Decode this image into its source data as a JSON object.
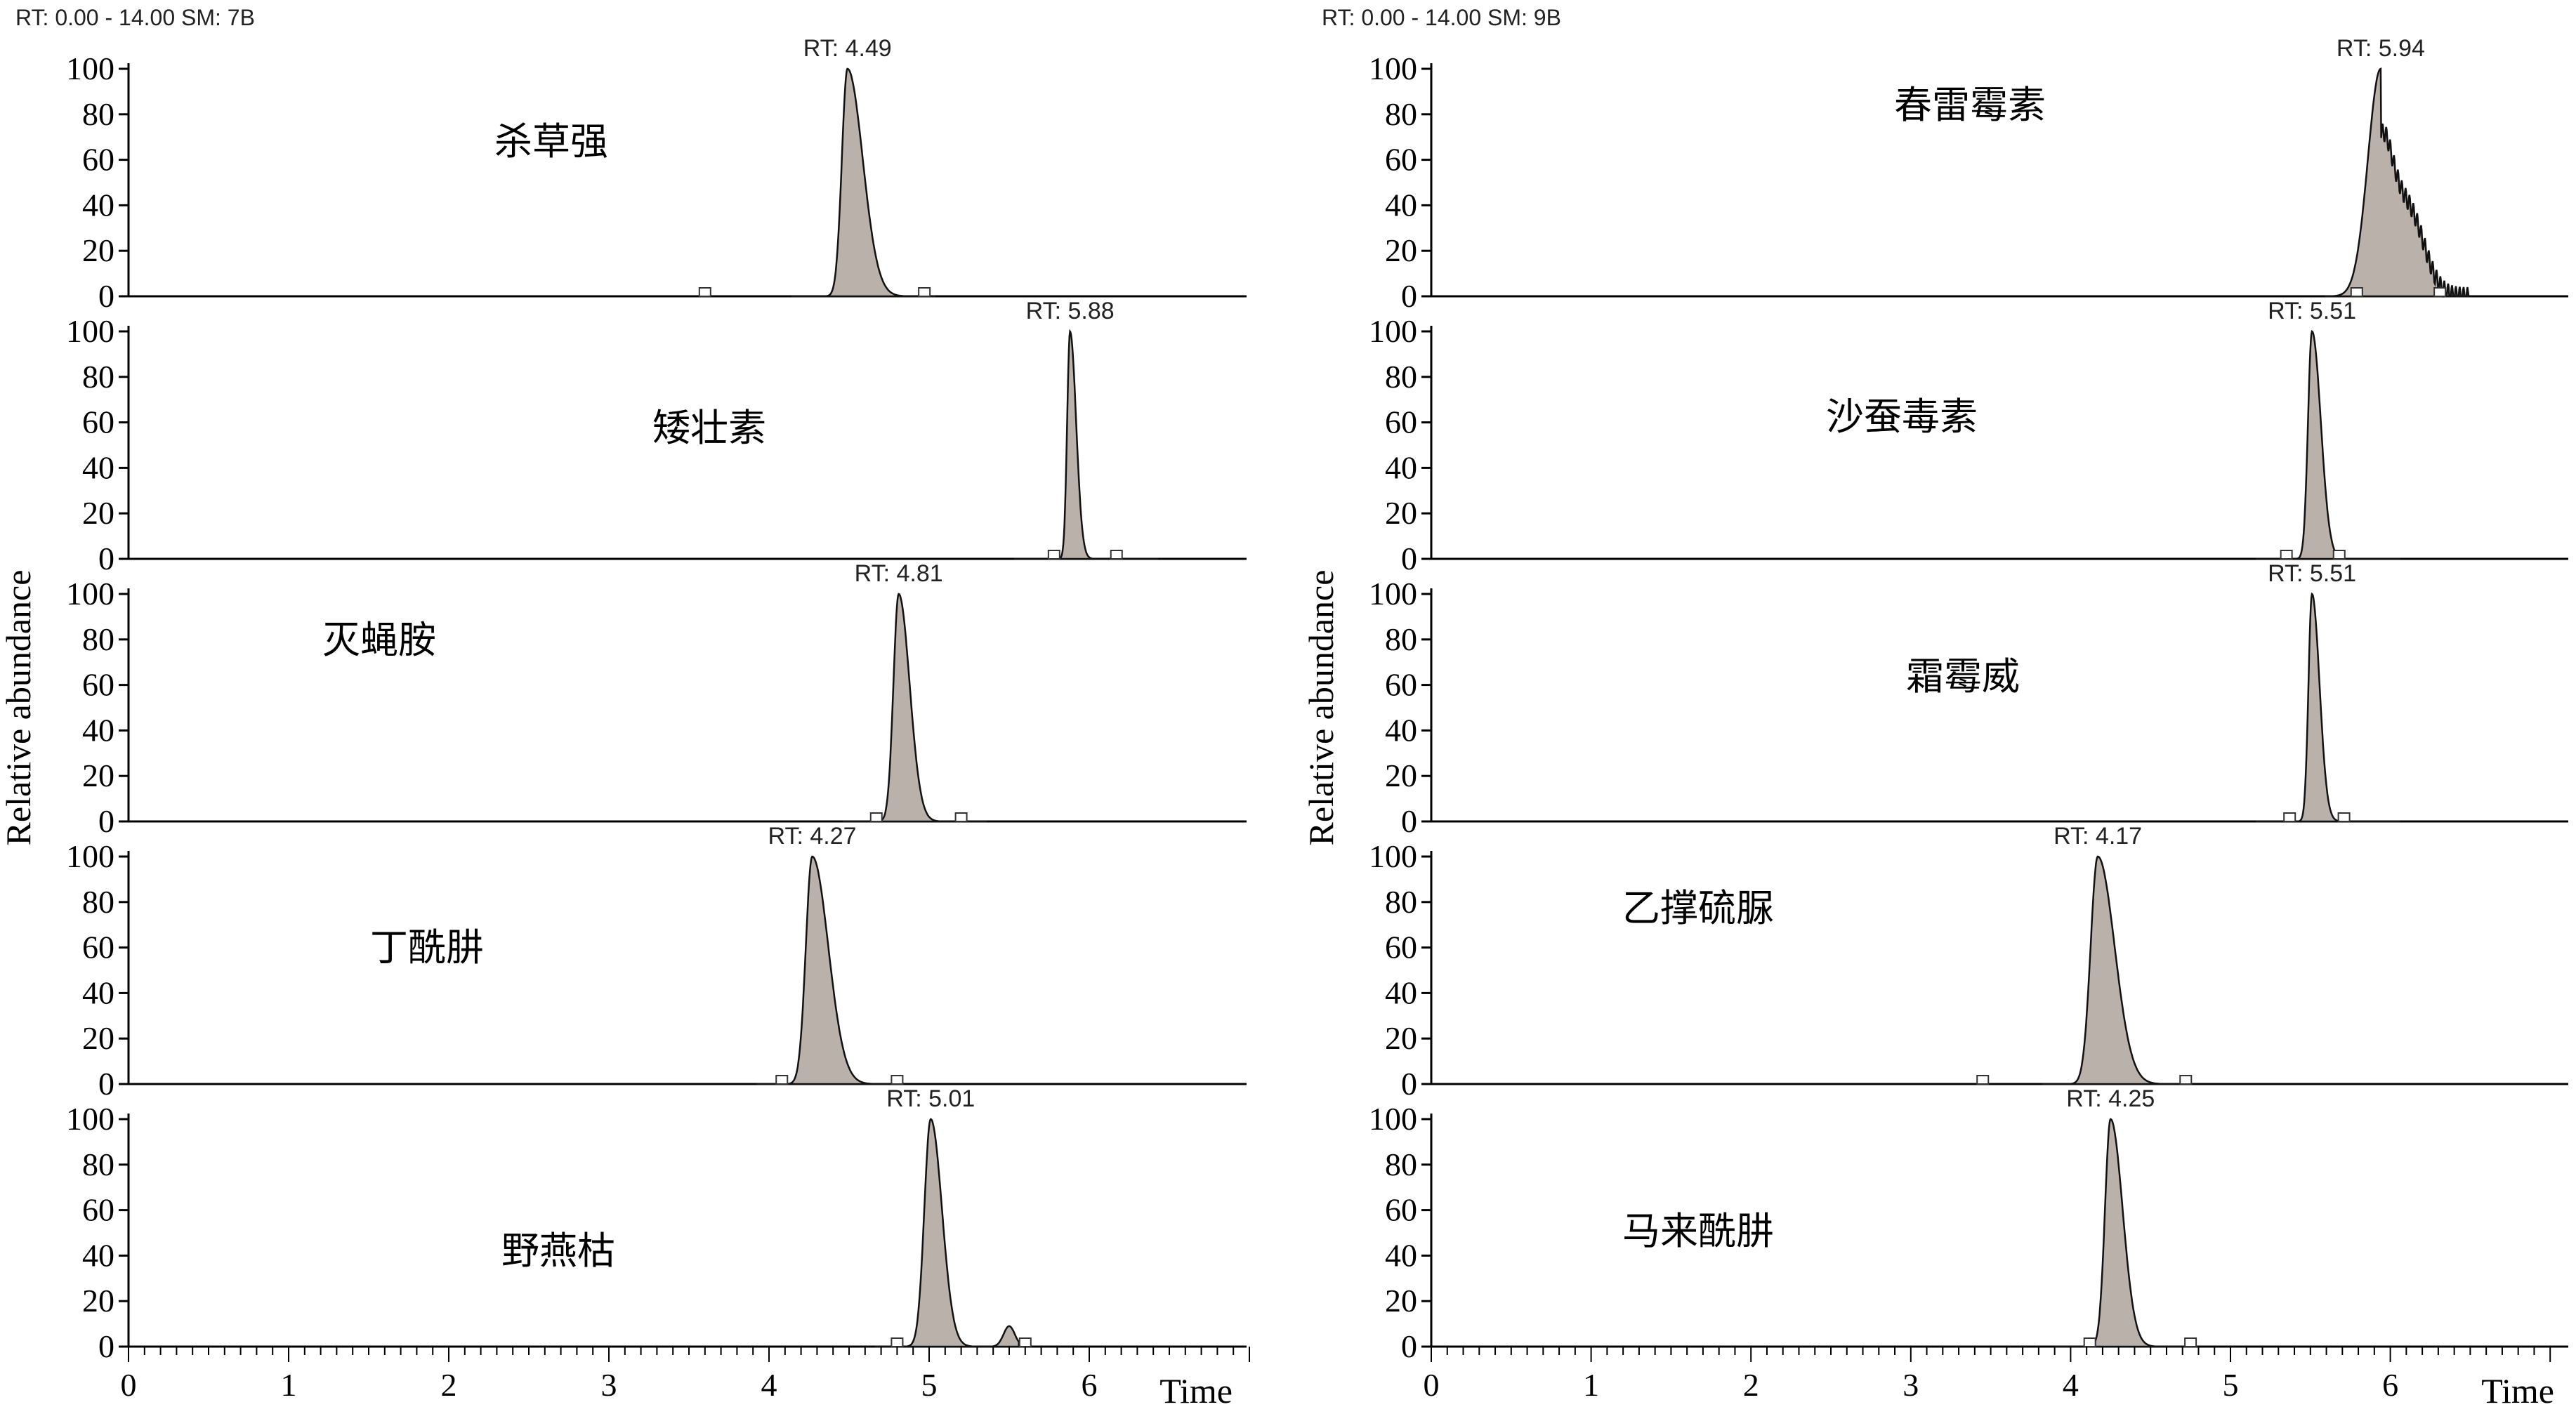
{
  "chart_data": [
    {
      "type": "line",
      "header": "RT: 0.00 - 14.00   SM: 7B",
      "ylabel": "Relative abundance",
      "xlabel": "Time",
      "xlim": [
        0,
        7
      ],
      "x_ticks": [
        "0",
        "1",
        "2",
        "3",
        "4",
        "5",
        "6"
      ],
      "y_ticks": [
        "0",
        "20",
        "40",
        "60",
        "80",
        "100"
      ],
      "ylim": [
        0,
        100
      ],
      "panels": [
        {
          "compound": "杀草强",
          "rt_label": "RT: 4.49",
          "peak_rt": 4.49,
          "peak_intensity": 100
        },
        {
          "compound": "矮壮素",
          "rt_label": "RT: 5.88",
          "peak_rt": 5.88,
          "peak_intensity": 100
        },
        {
          "compound": "灭蝇胺",
          "rt_label": "RT: 4.81",
          "peak_rt": 4.81,
          "peak_intensity": 100
        },
        {
          "compound": "丁酰肼",
          "rt_label": "RT: 4.27",
          "peak_rt": 4.27,
          "peak_intensity": 100
        },
        {
          "compound": "野燕枯",
          "rt_label": "RT: 5.01",
          "peak_rt": 5.01,
          "peak_intensity": 100
        }
      ]
    },
    {
      "type": "line",
      "header": "RT: 0.00 - 14.00   SM: 9B",
      "ylabel": "Relative abundance",
      "xlabel": "Time",
      "xlim": [
        0,
        7
      ],
      "x_ticks": [
        "0",
        "1",
        "2",
        "3",
        "4",
        "5",
        "6"
      ],
      "y_ticks": [
        "0",
        "20",
        "40",
        "60",
        "80",
        "100"
      ],
      "ylim": [
        0,
        100
      ],
      "panels": [
        {
          "compound": "春雷霉素",
          "rt_label": "RT: 5.94",
          "peak_rt": 5.94,
          "peak_intensity": 100
        },
        {
          "compound": "沙蚕毒素",
          "rt_label": "RT: 5.51",
          "peak_rt": 5.51,
          "peak_intensity": 100
        },
        {
          "compound": "霜霉威",
          "rt_label": "RT: 5.51",
          "peak_rt": 5.51,
          "peak_intensity": 100
        },
        {
          "compound": "乙撑硫脲",
          "rt_label": "RT: 4.17",
          "peak_rt": 4.17,
          "peak_intensity": 100
        },
        {
          "compound": "马来酰肼",
          "rt_label": "RT: 4.25",
          "peak_rt": 4.25,
          "peak_intensity": 100
        }
      ]
    }
  ],
  "colors": {
    "peak_fill": "#b9b1aa",
    "peak_stroke": "#111111",
    "axis": "#000000"
  }
}
